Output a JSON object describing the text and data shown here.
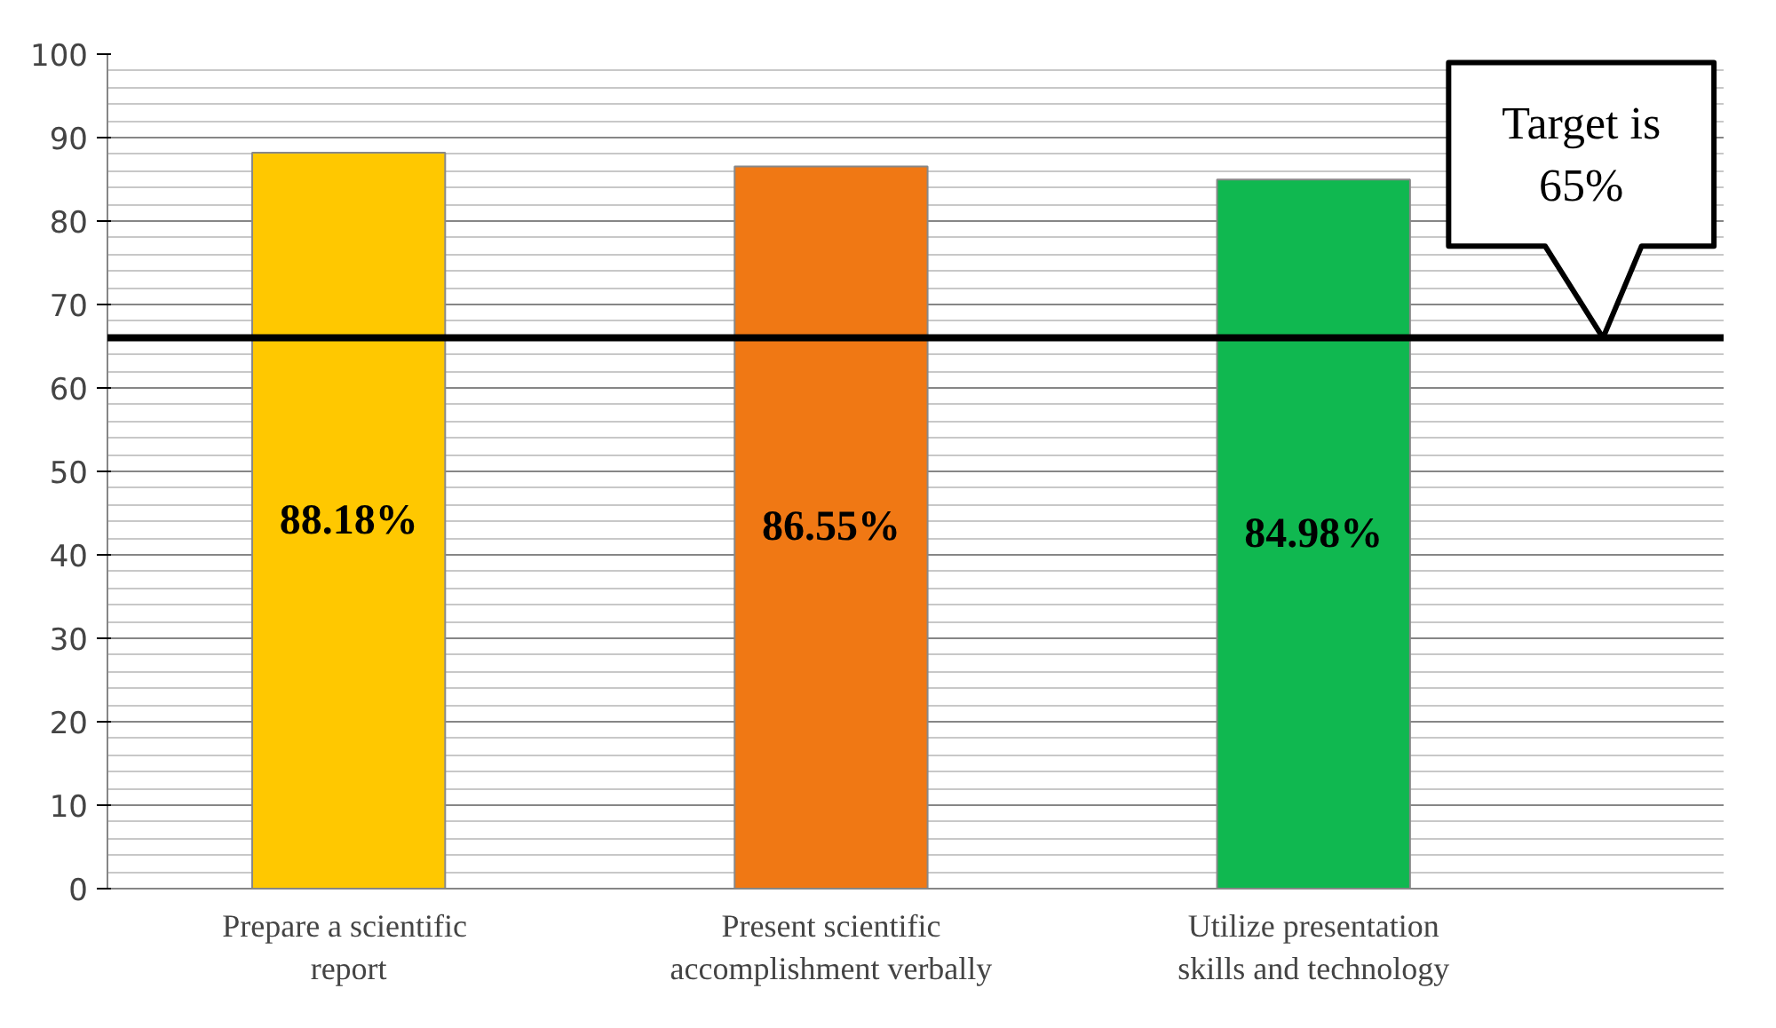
{
  "chart_data": {
    "type": "bar",
    "categories": [
      "Prepare a  scientific\nreport",
      "Present scientific\naccomplishment verbally",
      "Utilize presentation\nskills and technology"
    ],
    "values": [
      88.18,
      86.55,
      84.98
    ],
    "colors": [
      "#ffc800",
      "#f07814",
      "#10b850"
    ],
    "value_labels": [
      "88.18%",
      "86.55%",
      "84.98%"
    ],
    "ylim": [
      0,
      100
    ],
    "yticks": [
      0,
      10,
      20,
      30,
      40,
      50,
      60,
      70,
      80,
      90,
      100
    ],
    "grid": "y",
    "ref_lines": [
      {
        "axis": "y",
        "value": 66,
        "color": "#000000"
      }
    ],
    "annotations": [
      {
        "text": "Target is\n65%",
        "y": 66
      }
    ]
  }
}
